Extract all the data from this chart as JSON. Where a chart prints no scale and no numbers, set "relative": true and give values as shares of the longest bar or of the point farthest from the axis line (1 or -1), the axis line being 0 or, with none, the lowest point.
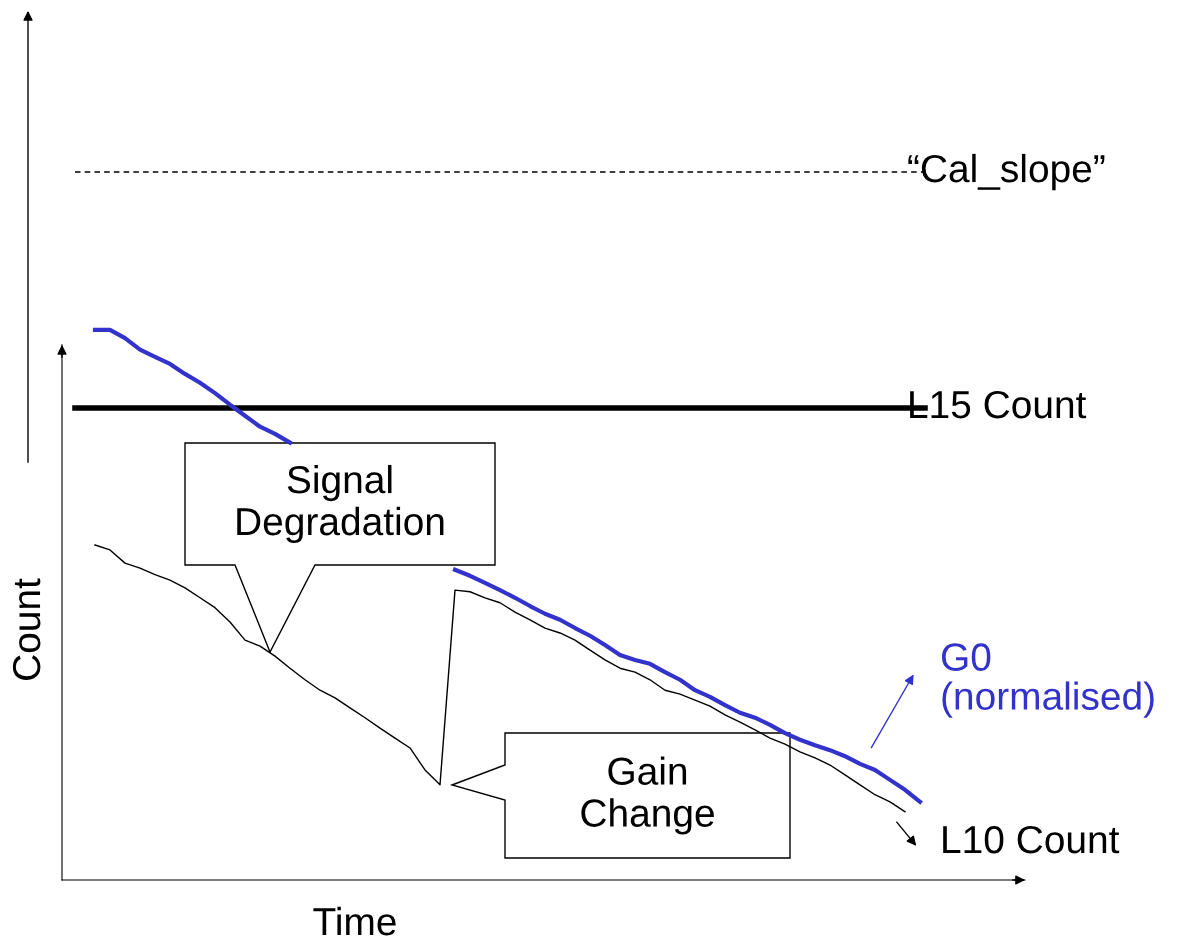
{
  "chart_data": {
    "type": "line",
    "relative": true,
    "xlabel": "Time",
    "ylabel": "Count",
    "legend": "right",
    "marker": "none",
    "line_style": "solid",
    "categories": [
      null,
      null,
      null,
      null,
      null,
      null,
      null,
      null,
      null,
      null,
      null,
      null,
      null,
      null,
      null,
      null,
      null,
      null,
      null,
      null,
      null,
      null,
      null,
      null,
      null,
      null,
      null,
      null,
      null,
      null,
      null,
      null,
      null,
      null,
      null,
      null,
      null,
      null,
      null,
      null,
      null,
      null,
      null,
      null,
      null,
      null,
      null,
      null,
      null,
      null,
      null,
      null,
      null,
      null,
      null,
      null
    ],
    "series": [
      {
        "name": "G0\n(normalised)",
        "color": "#3333cc",
        "values": [
          1.0,
          1.0,
          0.985,
          0.964,
          0.951,
          0.938,
          0.92,
          0.904,
          0.885,
          0.864,
          0.844,
          0.824,
          0.811,
          0.795,
          null,
          null,
          null,
          null,
          null,
          null,
          null,
          null,
          null,
          null,
          0.564,
          0.553,
          0.54,
          0.527,
          0.513,
          0.498,
          0.484,
          0.473,
          0.458,
          0.444,
          0.427,
          0.409,
          0.4,
          0.393,
          0.378,
          0.364,
          0.345,
          0.333,
          0.318,
          0.304,
          0.295,
          0.282,
          0.267,
          0.255,
          0.245,
          0.236,
          0.225,
          0.211,
          0.2,
          0.182,
          0.164,
          0.142
        ]
      },
      {
        "name": "L10 Count",
        "color": "#000000",
        "values": [
          0.609,
          0.6,
          0.576,
          0.567,
          0.555,
          0.545,
          0.531,
          0.513,
          0.495,
          0.469,
          0.436,
          0.425,
          0.407,
          0.385,
          0.364,
          0.345,
          0.331,
          0.313,
          0.295,
          0.276,
          0.258,
          0.24,
          0.2,
          0.173,
          0.527,
          0.524,
          0.513,
          0.504,
          0.487,
          0.473,
          0.458,
          0.449,
          0.436,
          0.418,
          0.4,
          0.385,
          0.378,
          0.364,
          0.345,
          0.338,
          0.327,
          0.316,
          0.3,
          0.287,
          0.273,
          0.258,
          0.247,
          0.233,
          0.222,
          0.209,
          0.191,
          0.173,
          0.155,
          0.142,
          0.124,
          null
        ]
      }
    ],
    "ref_lines": [
      {
        "axis": "y",
        "value": 0.858,
        "label": "L15 Count",
        "color": "#000000",
        "line_style": "solid"
      },
      {
        "axis": "y",
        "value": 1.287,
        "label": "“Cal_slope”",
        "color": "#000000",
        "line_style": "dashed"
      }
    ],
    "annotations": [
      "Signal\nDegradation",
      "Gain\nChange"
    ]
  }
}
